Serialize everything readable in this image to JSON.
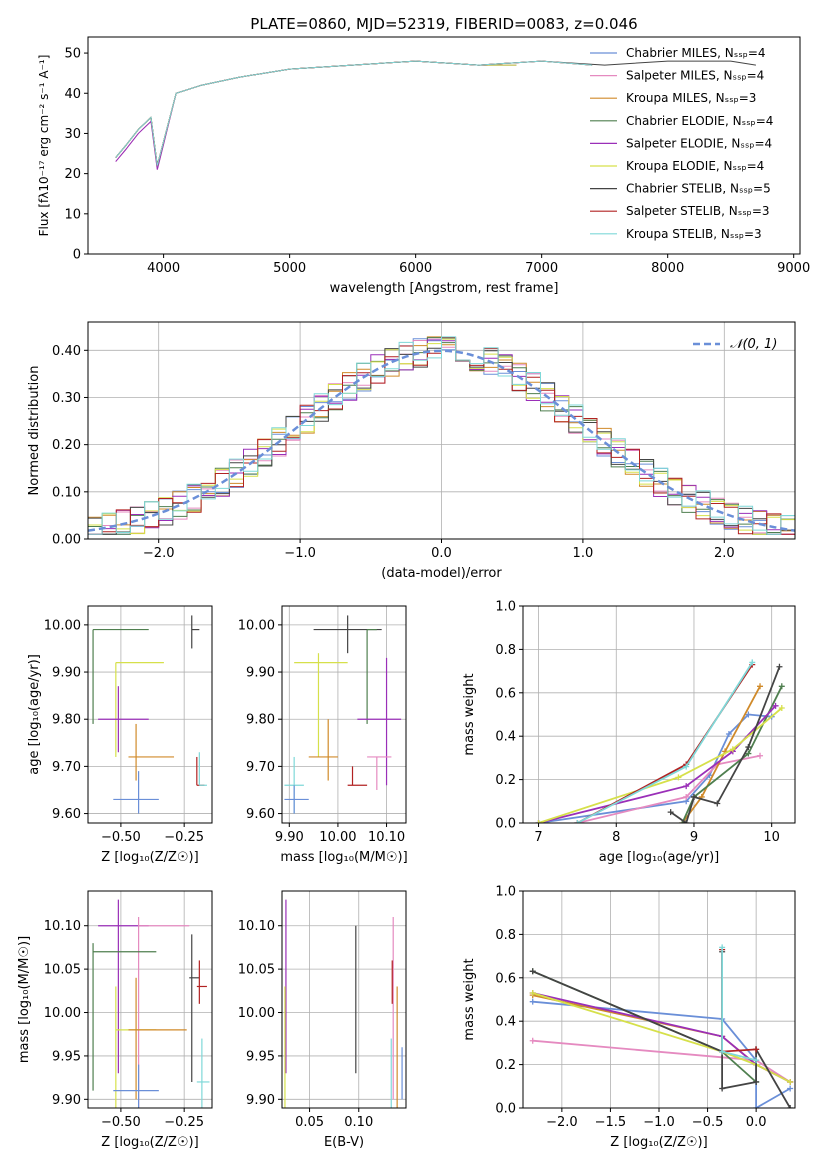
{
  "chart_data": [
    {
      "id": "spectrum",
      "type": "line",
      "title": "PLATE=0860, MJD=52319, FIBERID=0083, z=0.046",
      "xlabel": "wavelength [Angstrom, rest frame]",
      "ylabel": "Flux [fλ10⁻¹⁷ erg cm⁻² s⁻¹ A⁻¹]",
      "xlim": [
        3400,
        9050
      ],
      "ylim": [
        0,
        54
      ],
      "xticks": [
        4000,
        5000,
        6000,
        7000,
        8000,
        9000
      ],
      "yticks": [
        0,
        10,
        20,
        30,
        40,
        50
      ],
      "legend": "top-right",
      "series": [
        {
          "name": "Chabrier MILES, N_SSP=4",
          "color": "#6a8fd8",
          "x": [
            3620,
            3700,
            3800,
            3900,
            3950,
            4100,
            4300,
            4600,
            5000,
            5500,
            6000,
            6500,
            7000,
            7400
          ],
          "y": [
            24,
            27,
            31,
            34,
            22,
            40,
            42,
            44,
            46,
            47,
            48,
            47,
            48,
            47
          ]
        },
        {
          "name": "Salpeter MILES, N_SSP=4",
          "color": "#e58ac0",
          "x": [
            3620,
            3700,
            3800,
            3900,
            3950,
            4100,
            4300,
            4600,
            5000,
            5500,
            6000,
            6500,
            7000,
            7400
          ],
          "y": [
            23,
            26,
            30,
            33,
            21,
            40,
            42,
            44,
            46,
            47,
            48,
            47,
            48,
            47
          ]
        },
        {
          "name": "Kroupa MILES, N_SSP=3",
          "color": "#d08a2a",
          "x": [
            3620,
            3700,
            3800,
            3900,
            3950,
            4100,
            4300,
            4600,
            5000,
            5500,
            6000,
            6500,
            7000,
            7400
          ],
          "y": [
            24,
            27,
            31,
            34,
            22,
            40,
            42,
            44,
            46,
            47,
            48,
            47,
            48,
            47
          ]
        },
        {
          "name": "Chabrier ELODIE, N_SSP=4",
          "color": "#4f7f4f",
          "x": [
            3620,
            3700,
            3800,
            3900,
            3950,
            4100,
            4300,
            4600,
            5000,
            5500,
            6000,
            6500,
            6800
          ],
          "y": [
            24,
            27,
            31,
            34,
            22,
            40,
            42,
            44,
            46,
            47,
            48,
            47,
            47
          ]
        },
        {
          "name": "Salpeter ELODIE, N_SSP=4",
          "color": "#9a2fb8",
          "x": [
            3620,
            3700,
            3800,
            3900,
            3950,
            4100,
            4300,
            4600,
            5000,
            5500,
            6000,
            6500,
            6800
          ],
          "y": [
            23,
            26,
            30,
            33,
            21,
            40,
            42,
            44,
            46,
            47,
            48,
            47,
            47
          ]
        },
        {
          "name": "Kroupa ELODIE, N_SSP=4",
          "color": "#d6e04a",
          "x": [
            3620,
            3700,
            3800,
            3900,
            3950,
            4100,
            4300,
            4600,
            5000,
            5500,
            6000,
            6500,
            6800
          ],
          "y": [
            24,
            27,
            31,
            34,
            22,
            40,
            42,
            44,
            46,
            47,
            48,
            47,
            47
          ]
        },
        {
          "name": "Chabrier STELIB, N_SSP=5",
          "color": "#444444",
          "x": [
            3620,
            3700,
            3800,
            3900,
            3950,
            4100,
            4300,
            4600,
            5000,
            5500,
            6000,
            6500,
            7000,
            7500,
            8000,
            8500,
            8700
          ],
          "y": [
            24,
            27,
            31,
            34,
            22,
            40,
            42,
            44,
            46,
            47,
            48,
            47,
            48,
            47,
            48,
            48,
            47
          ]
        },
        {
          "name": "Salpeter STELIB, N_SSP=3",
          "color": "#b22222",
          "x": [
            3620,
            3700,
            3800,
            3900,
            3950,
            4100,
            4300,
            4600,
            5000,
            5500,
            6000,
            6500,
            7000,
            7400
          ],
          "y": [
            24,
            27,
            31,
            34,
            22,
            40,
            42,
            44,
            46,
            47,
            48,
            47,
            48,
            47
          ]
        },
        {
          "name": "Kroupa STELIB, N_SSP=3",
          "color": "#7fd8d8",
          "x": [
            3620,
            3700,
            3800,
            3900,
            3950,
            4100,
            4300,
            4600,
            5000,
            5500,
            6000,
            6500,
            7000,
            7400
          ],
          "y": [
            24,
            27,
            31,
            34,
            22,
            40,
            42,
            44,
            46,
            47,
            48,
            47,
            48,
            47
          ]
        }
      ]
    },
    {
      "id": "residuals",
      "type": "line",
      "xlabel": "(data-model)/error",
      "ylabel": "Normed distribution",
      "xlim": [
        -2.5,
        2.5
      ],
      "ylim": [
        0,
        0.46
      ],
      "xticks": [
        -2,
        -1,
        0,
        1,
        2
      ],
      "yticks": [
        0.0,
        0.1,
        0.2,
        0.3,
        0.4
      ],
      "grid": true,
      "legend": "top-right",
      "reference": {
        "name": "𝒩(0, 1)",
        "color": "#6a8fd8",
        "style": "dashed",
        "curve": "gaussian",
        "mean": 0,
        "sigma": 1
      }
    },
    {
      "id": "z-age",
      "type": "scatter",
      "xlabel": "Z [log₁₀(Z/Z☉)]",
      "ylabel": "age  [log₁₀(age/yr)]",
      "xlim": [
        -0.63,
        -0.14
      ],
      "ylim": [
        9.58,
        10.04
      ],
      "xticks": [
        -0.5,
        -0.25
      ],
      "yticks": [
        9.6,
        9.7,
        9.8,
        9.9,
        10.0
      ],
      "grid": true,
      "points": [
        {
          "color": "#4f7f4f",
          "x": -0.61,
          "y": 9.99,
          "xl": -0.61,
          "xh": -0.39,
          "yl": 9.79,
          "yh": 9.99
        },
        {
          "color": "#d6e04a",
          "x": -0.52,
          "y": 9.92,
          "xl": -0.52,
          "xh": -0.33,
          "yl": 9.72,
          "yh": 9.92
        },
        {
          "color": "#9a2fb8",
          "x": -0.51,
          "y": 9.8,
          "xl": -0.59,
          "xh": -0.39,
          "yl": 9.73,
          "yh": 9.87
        },
        {
          "color": "#d08a2a",
          "x": -0.44,
          "y": 9.72,
          "xl": -0.47,
          "xh": -0.29,
          "yl": 9.67,
          "yh": 9.79
        },
        {
          "color": "#6a8fd8",
          "x": -0.43,
          "y": 9.63,
          "xl": -0.53,
          "xh": -0.35,
          "yl": 9.6,
          "yh": 9.69
        },
        {
          "color": "#444444",
          "x": -0.22,
          "y": 9.99,
          "xl": -0.22,
          "xh": -0.19,
          "yl": 9.95,
          "yh": 10.02
        },
        {
          "color": "#b22222",
          "x": -0.2,
          "y": 9.66,
          "xl": -0.2,
          "xh": -0.17,
          "yl": 9.66,
          "yh": 9.72
        },
        {
          "color": "#7fd8d8",
          "x": -0.19,
          "y": 9.66,
          "xl": -0.19,
          "xh": -0.16,
          "yl": 9.66,
          "yh": 9.73
        }
      ]
    },
    {
      "id": "mass-age",
      "type": "scatter",
      "xlabel": "mass [log₁₀(M/M☉)]",
      "xlim": [
        9.885,
        10.14
      ],
      "ylim": [
        9.58,
        10.04
      ],
      "xticks": [
        9.9,
        10.0,
        10.1
      ],
      "yticks": [
        9.6,
        9.7,
        9.8,
        9.9,
        10.0
      ],
      "grid": true,
      "points": [
        {
          "color": "#444444",
          "x": 10.02,
          "y": 9.99,
          "xl": 9.95,
          "xh": 10.09,
          "yl": 9.94,
          "yh": 10.02
        },
        {
          "color": "#4f7f4f",
          "x": 10.06,
          "y": 9.99,
          "xl": 10.06,
          "xh": 10.08,
          "yl": 9.79,
          "yh": 9.99
        },
        {
          "color": "#d6e04a",
          "x": 9.96,
          "y": 9.92,
          "xl": 9.91,
          "xh": 10.02,
          "yl": 9.72,
          "yh": 9.94
        },
        {
          "color": "#9a2fb8",
          "x": 10.1,
          "y": 9.8,
          "xl": 10.04,
          "xh": 10.13,
          "yl": 9.66,
          "yh": 9.93
        },
        {
          "color": "#d08a2a",
          "x": 9.98,
          "y": 9.72,
          "xl": 9.94,
          "xh": 10.0,
          "yl": 9.67,
          "yh": 9.8
        },
        {
          "color": "#e58ac0",
          "x": 10.08,
          "y": 9.72,
          "xl": 10.06,
          "xh": 10.11,
          "yl": 9.65,
          "yh": 9.72
        },
        {
          "color": "#b22222",
          "x": 10.03,
          "y": 9.66,
          "xl": 10.02,
          "xh": 10.06,
          "yl": 9.66,
          "yh": 9.7
        },
        {
          "color": "#7fd8d8",
          "x": 9.91,
          "y": 9.66,
          "xl": 9.89,
          "xh": 9.93,
          "yl": 9.6,
          "yh": 9.72
        },
        {
          "color": "#6a8fd8",
          "x": 9.91,
          "y": 9.63,
          "xl": 9.89,
          "xh": 9.94,
          "yl": 9.6,
          "yh": 9.66
        }
      ]
    },
    {
      "id": "age-weight",
      "type": "line",
      "xlabel": "age  [log₁₀(age/yr)]",
      "ylabel": "mass weight",
      "xlim": [
        6.8,
        10.3
      ],
      "ylim": [
        0,
        1.0
      ],
      "xticks": [
        7,
        8,
        9,
        10
      ],
      "yticks": [
        0.0,
        0.2,
        0.4,
        0.6,
        0.8,
        1.0
      ],
      "grid": true,
      "series": [
        {
          "color": "#6a8fd8",
          "x": [
            7.0,
            8.9,
            9.2,
            9.45,
            9.7,
            10.0
          ],
          "y": [
            0.0,
            0.1,
            0.22,
            0.41,
            0.5,
            0.49
          ]
        },
        {
          "color": "#e58ac0",
          "x": [
            7.5,
            8.9,
            9.3,
            9.85
          ],
          "y": [
            0.0,
            0.12,
            0.27,
            0.31
          ]
        },
        {
          "color": "#d08a2a",
          "x": [
            8.85,
            9.1,
            9.4,
            9.85
          ],
          "y": [
            0.0,
            0.12,
            0.33,
            0.63
          ]
        },
        {
          "color": "#4f7f4f",
          "x": [
            8.85,
            9.0,
            9.7,
            10.13
          ],
          "y": [
            0.0,
            0.12,
            0.32,
            0.63
          ]
        },
        {
          "color": "#9a2fb8",
          "x": [
            7.0,
            8.9,
            9.5,
            10.05
          ],
          "y": [
            0.0,
            0.17,
            0.33,
            0.54
          ]
        },
        {
          "color": "#d6e04a",
          "x": [
            7.0,
            8.8,
            9.5,
            10.13
          ],
          "y": [
            0.0,
            0.21,
            0.34,
            0.53
          ]
        },
        {
          "color": "#444444",
          "x": [
            8.7,
            8.9,
            9.0,
            9.3,
            9.7,
            10.1
          ],
          "y": [
            0.05,
            0.0,
            0.12,
            0.09,
            0.35,
            0.72
          ]
        },
        {
          "color": "#b22222",
          "x": [
            7.5,
            8.9,
            9.75
          ],
          "y": [
            0.0,
            0.27,
            0.73
          ]
        },
        {
          "color": "#7fd8d8",
          "x": [
            7.5,
            8.9,
            9.75
          ],
          "y": [
            0.0,
            0.26,
            0.74
          ]
        }
      ]
    },
    {
      "id": "z-mass",
      "type": "scatter",
      "xlabel": "Z [log₁₀(Z/Z☉)]",
      "ylabel": "mass [log₁₀(M/M☉)]",
      "xlim": [
        -0.63,
        -0.14
      ],
      "ylim": [
        9.89,
        10.14
      ],
      "xticks": [
        -0.5,
        -0.25
      ],
      "yticks": [
        9.9,
        9.95,
        10.0,
        10.05,
        10.1
      ],
      "grid": true,
      "points": [
        {
          "color": "#9a2fb8",
          "x": -0.51,
          "y": 10.1,
          "xl": -0.59,
          "xh": -0.39,
          "yl": 9.93,
          "yh": 10.13
        },
        {
          "color": "#e58ac0",
          "x": -0.43,
          "y": 10.1,
          "xl": -0.43,
          "xh": -0.23,
          "yl": 9.89,
          "yh": 10.11
        },
        {
          "color": "#4f7f4f",
          "x": -0.61,
          "y": 10.07,
          "xl": -0.61,
          "xh": -0.36,
          "yl": 9.91,
          "yh": 10.08
        },
        {
          "color": "#d6e04a",
          "x": -0.52,
          "y": 9.98,
          "xl": -0.52,
          "xh": -0.36,
          "yl": 9.89,
          "yh": 10.03
        },
        {
          "color": "#d08a2a",
          "x": -0.44,
          "y": 9.98,
          "xl": -0.47,
          "xh": -0.24,
          "yl": 9.9,
          "yh": 10.04
        },
        {
          "color": "#6a8fd8",
          "x": -0.43,
          "y": 9.91,
          "xl": -0.53,
          "xh": -0.35,
          "yl": 9.89,
          "yh": 9.94
        },
        {
          "color": "#444444",
          "x": -0.22,
          "y": 10.04,
          "xl": -0.23,
          "xh": -0.19,
          "yl": 9.92,
          "yh": 10.09
        },
        {
          "color": "#b22222",
          "x": -0.19,
          "y": 10.03,
          "xl": -0.2,
          "xh": -0.16,
          "yl": 10.01,
          "yh": 10.06
        },
        {
          "color": "#7fd8d8",
          "x": -0.18,
          "y": 9.92,
          "xl": -0.2,
          "xh": -0.15,
          "yl": 9.89,
          "yh": 9.97
        }
      ]
    },
    {
      "id": "ebv-mass",
      "type": "scatter",
      "xlabel": "E(B-V)",
      "xlim": [
        0.022,
        0.148
      ],
      "ylim": [
        9.89,
        10.14
      ],
      "xticks": [
        0.05,
        0.1
      ],
      "yticks": [
        9.9,
        9.95,
        10.0,
        10.05,
        10.1
      ],
      "grid": true,
      "points": [
        {
          "color": "#9a2fb8",
          "x": 0.026,
          "y": 10.03,
          "yl": 9.93,
          "yh": 10.13
        },
        {
          "color": "#d6e04a",
          "x": 0.025,
          "y": 9.97,
          "yl": 9.89,
          "yh": 10.03
        },
        {
          "color": "#444444",
          "x": 0.097,
          "y": 10.03,
          "yl": 9.93,
          "yh": 10.1
        },
        {
          "color": "#e58ac0",
          "x": 0.135,
          "y": 10.03,
          "yl": 9.9,
          "yh": 10.11
        },
        {
          "color": "#b22222",
          "x": 0.134,
          "y": 10.03,
          "yl": 10.01,
          "yh": 10.06
        },
        {
          "color": "#d08a2a",
          "x": 0.139,
          "y": 9.97,
          "yl": 9.89,
          "yh": 10.03
        },
        {
          "color": "#7fd8d8",
          "x": 0.133,
          "y": 9.93,
          "yl": 9.89,
          "yh": 9.97
        },
        {
          "color": "#6a8fd8",
          "x": 0.144,
          "y": 9.93,
          "yl": 9.9,
          "yh": 9.96
        }
      ]
    },
    {
      "id": "z-weight",
      "type": "line",
      "xlabel": "Z [log₁₀(Z/Z☉)]",
      "ylabel": "mass weight",
      "xlim": [
        -2.4,
        0.4
      ],
      "ylim": [
        0,
        1.0
      ],
      "xticks": [
        -2.0,
        -1.5,
        -1.0,
        -0.5,
        0.0
      ],
      "yticks": [
        0.0,
        0.2,
        0.4,
        0.6,
        0.8,
        1.0
      ],
      "grid": true,
      "series": [
        {
          "color": "#6a8fd8",
          "x": [
            -2.3,
            -0.35,
            0.0,
            0.0,
            0.35
          ],
          "y": [
            0.49,
            0.41,
            0.22,
            0.0,
            0.09
          ]
        },
        {
          "color": "#e58ac0",
          "x": [
            -2.3,
            0.0,
            0.35
          ],
          "y": [
            0.31,
            0.22,
            0.12
          ]
        },
        {
          "color": "#d08a2a",
          "x": [
            -2.3,
            -0.35,
            0.0,
            0.35
          ],
          "y": [
            0.52,
            0.33,
            0.2,
            0.12
          ]
        },
        {
          "color": "#4f7f4f",
          "x": [
            -2.3,
            -0.35,
            0.0
          ],
          "y": [
            0.63,
            0.26,
            0.12
          ]
        },
        {
          "color": "#9a2fb8",
          "x": [
            -2.3,
            -0.35,
            0.0,
            0.35
          ],
          "y": [
            0.53,
            0.33,
            0.2,
            0.12
          ]
        },
        {
          "color": "#d6e04a",
          "x": [
            -2.3,
            -0.35,
            0.0,
            0.35
          ],
          "y": [
            0.53,
            0.26,
            0.2,
            0.12
          ]
        },
        {
          "color": "#444444",
          "x": [
            -2.3,
            -0.35,
            -0.35,
            -0.35,
            0.0,
            0.0,
            0.35
          ],
          "y": [
            0.63,
            0.26,
            0.72,
            0.09,
            0.12,
            0.27,
            0.0
          ]
        },
        {
          "color": "#b22222",
          "x": [
            -0.35,
            -0.35,
            0.0
          ],
          "y": [
            0.73,
            0.26,
            0.27
          ]
        },
        {
          "color": "#7fd8d8",
          "x": [
            -0.35,
            -0.35,
            0.0
          ],
          "y": [
            0.74,
            0.26,
            0.22
          ]
        }
      ]
    }
  ]
}
